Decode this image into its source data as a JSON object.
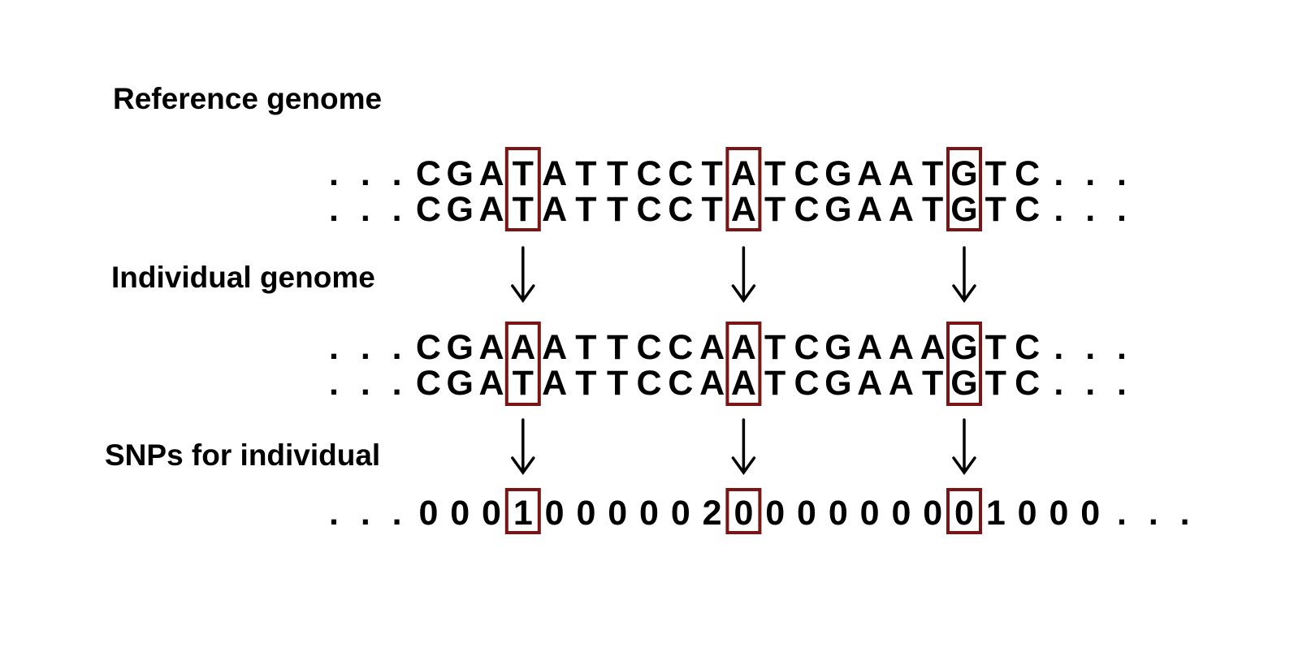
{
  "labels": {
    "reference": "Reference genome",
    "individual": "Individual genome",
    "snps": "SNPs for individual"
  },
  "sequences": {
    "reference": [
      "...CGATATTCCTATCGAATGTC...",
      "...CGATATTCCTATCGAATGTC..."
    ],
    "individual": [
      "...CGAAATTCCAATCGAAAGTC...",
      "...CGATATTCCAATCGAATGTC..."
    ],
    "snps": [
      "...0001000002000000001000..."
    ]
  },
  "snp_positions": [
    6,
    13,
    20
  ],
  "colors": {
    "highlight_box": "#7b1515",
    "text": "#000000",
    "background": "#ffffff"
  }
}
